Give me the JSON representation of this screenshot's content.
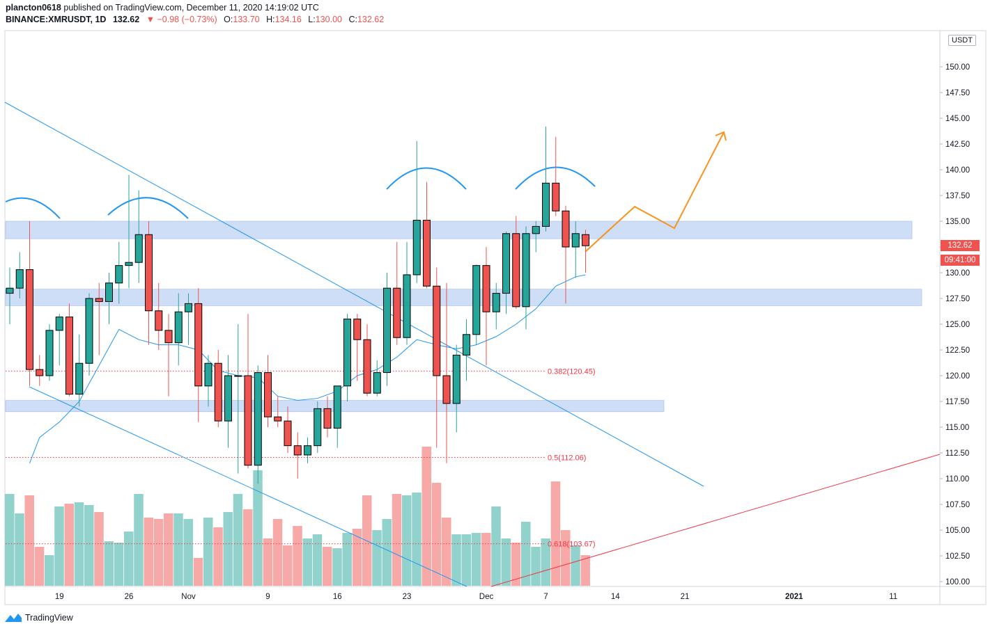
{
  "header": {
    "author": "plancton0618",
    "published_text": "published on TradingView.com, December 11, 2020 14:19:02 UTC",
    "symbol": "BINANCE:XMRUSDT, 1D",
    "last": "132.62",
    "change": "▼ −0.98 (−0.73%)",
    "o_label": "O:",
    "o": "133.70",
    "h_label": "H:",
    "h": "134.16",
    "l_label": "L:",
    "l": "130.00",
    "c_label": "C:",
    "c": "132.62"
  },
  "price_axis": {
    "currency": "USDT",
    "last_price_tag": "132.62",
    "countdown_tag": "09:41:00"
  },
  "colors": {
    "up": "#26a69a",
    "down": "#ef5350",
    "vol_up": "#92d2cc",
    "vol_down": "#f7a9a7",
    "zone": "#c6d8f5",
    "trend": "#2196f3",
    "projection": "#f7931e",
    "support": "#f23645"
  },
  "footer": {
    "brand": "TradingView"
  },
  "chart_data": {
    "type": "candlestick",
    "ylim": [
      100,
      151.5
    ],
    "y_ticks": [
      "100.00",
      "102.50",
      "105.00",
      "107.50",
      "110.00",
      "112.50",
      "115.00",
      "117.50",
      "120.00",
      "122.50",
      "125.00",
      "127.50",
      "130.00",
      "132.50",
      "135.00",
      "137.50",
      "140.00",
      "142.50",
      "145.00",
      "147.50",
      "150.00"
    ],
    "x_ticks": [
      {
        "label": "19",
        "bar": 5
      },
      {
        "label": "26",
        "bar": 12
      },
      {
        "label": "Nov",
        "bar": 18
      },
      {
        "label": "9",
        "bar": 26
      },
      {
        "label": "16",
        "bar": 33
      },
      {
        "label": "23",
        "bar": 40
      },
      {
        "label": "Dec",
        "bar": 48
      },
      {
        "label": "7",
        "bar": 54
      },
      {
        "label": "14",
        "bar": 61
      },
      {
        "label": "21",
        "bar": 68
      },
      {
        "label": "2021",
        "bar": 79
      },
      {
        "label": "11",
        "bar": 89
      }
    ],
    "candles": [
      {
        "o": 128.0,
        "h": 130.5,
        "l": 125.0,
        "c": 128.5
      },
      {
        "o": 128.5,
        "h": 132.0,
        "l": 127.5,
        "c": 130.3
      },
      {
        "o": 130.3,
        "h": 135.0,
        "l": 119.0,
        "c": 120.6
      },
      {
        "o": 120.6,
        "h": 122.0,
        "l": 119.0,
        "c": 120.0
      },
      {
        "o": 120.0,
        "h": 125.0,
        "l": 119.5,
        "c": 124.4
      },
      {
        "o": 124.4,
        "h": 126.0,
        "l": 121.0,
        "c": 125.7
      },
      {
        "o": 125.7,
        "h": 127.0,
        "l": 118.0,
        "c": 118.2
      },
      {
        "o": 118.2,
        "h": 124.0,
        "l": 117.0,
        "c": 121.2
      },
      {
        "o": 121.2,
        "h": 128.0,
        "l": 120.0,
        "c": 127.5
      },
      {
        "o": 127.5,
        "h": 129.0,
        "l": 122.0,
        "c": 127.2
      },
      {
        "o": 127.2,
        "h": 130.0,
        "l": 125.0,
        "c": 129.0
      },
      {
        "o": 129.0,
        "h": 133.0,
        "l": 127.0,
        "c": 130.7
      },
      {
        "o": 130.7,
        "h": 139.5,
        "l": 128.5,
        "c": 131.0
      },
      {
        "o": 131.0,
        "h": 138.0,
        "l": 129.0,
        "c": 133.7
      },
      {
        "o": 133.7,
        "h": 135.0,
        "l": 123.0,
        "c": 126.3
      },
      {
        "o": 126.3,
        "h": 129.0,
        "l": 122.5,
        "c": 124.4
      },
      {
        "o": 124.4,
        "h": 126.0,
        "l": 118.0,
        "c": 123.2
      },
      {
        "o": 123.2,
        "h": 128.0,
        "l": 121.0,
        "c": 126.2
      },
      {
        "o": 126.2,
        "h": 128.0,
        "l": 123.0,
        "c": 127.0
      },
      {
        "o": 127.0,
        "h": 128.5,
        "l": 115.5,
        "c": 119.0
      },
      {
        "o": 119.0,
        "h": 122.0,
        "l": 117.0,
        "c": 121.2
      },
      {
        "o": 121.2,
        "h": 122.5,
        "l": 115.0,
        "c": 115.6
      },
      {
        "o": 115.6,
        "h": 122.0,
        "l": 113.0,
        "c": 120.0
      },
      {
        "o": 120.0,
        "h": 125.0,
        "l": 110.5,
        "c": 120.0
      },
      {
        "o": 120.0,
        "h": 126.0,
        "l": 111.0,
        "c": 111.3
      },
      {
        "o": 111.3,
        "h": 121.0,
        "l": 109.5,
        "c": 120.3
      },
      {
        "o": 120.3,
        "h": 122.0,
        "l": 115.0,
        "c": 116.0
      },
      {
        "o": 116.0,
        "h": 118.0,
        "l": 115.0,
        "c": 115.6
      },
      {
        "o": 115.6,
        "h": 117.0,
        "l": 112.5,
        "c": 113.2
      },
      {
        "o": 113.2,
        "h": 114.5,
        "l": 110.0,
        "c": 112.3
      },
      {
        "o": 112.3,
        "h": 114.0,
        "l": 111.5,
        "c": 113.2
      },
      {
        "o": 113.2,
        "h": 117.5,
        "l": 112.5,
        "c": 116.8
      },
      {
        "o": 116.8,
        "h": 118.0,
        "l": 114.0,
        "c": 114.9
      },
      {
        "o": 114.9,
        "h": 119.0,
        "l": 113.0,
        "c": 119.0
      },
      {
        "o": 119.0,
        "h": 126.0,
        "l": 117.5,
        "c": 125.5
      },
      {
        "o": 125.5,
        "h": 126.0,
        "l": 119.5,
        "c": 123.5
      },
      {
        "o": 123.5,
        "h": 125.0,
        "l": 118.0,
        "c": 118.3
      },
      {
        "o": 118.3,
        "h": 121.5,
        "l": 118.0,
        "c": 120.3
      },
      {
        "o": 120.3,
        "h": 130.0,
        "l": 119.0,
        "c": 128.5
      },
      {
        "o": 128.5,
        "h": 133.0,
        "l": 123.0,
        "c": 123.7
      },
      {
        "o": 123.7,
        "h": 133.0,
        "l": 123.0,
        "c": 129.8
      },
      {
        "o": 129.8,
        "h": 142.8,
        "l": 129.0,
        "c": 135.1
      },
      {
        "o": 135.1,
        "h": 138.8,
        "l": 128.5,
        "c": 128.7
      },
      {
        "o": 128.7,
        "h": 130.5,
        "l": 113.0,
        "c": 120.0
      },
      {
        "o": 120.0,
        "h": 129.0,
        "l": 111.5,
        "c": 117.3
      },
      {
        "o": 117.3,
        "h": 123.0,
        "l": 114.5,
        "c": 122.0
      },
      {
        "o": 122.0,
        "h": 125.5,
        "l": 119.5,
        "c": 124.0
      },
      {
        "o": 124.0,
        "h": 130.8,
        "l": 123.0,
        "c": 130.7
      },
      {
        "o": 130.7,
        "h": 132.5,
        "l": 121.0,
        "c": 126.2
      },
      {
        "o": 126.2,
        "h": 129.0,
        "l": 124.5,
        "c": 128.0
      },
      {
        "o": 128.0,
        "h": 134.0,
        "l": 126.0,
        "c": 133.8
      },
      {
        "o": 133.8,
        "h": 135.5,
        "l": 126.5,
        "c": 126.7
      },
      {
        "o": 126.7,
        "h": 134.5,
        "l": 124.5,
        "c": 133.8
      },
      {
        "o": 133.8,
        "h": 135.0,
        "l": 132.0,
        "c": 134.5
      },
      {
        "o": 134.5,
        "h": 144.2,
        "l": 134.0,
        "c": 138.7
      },
      {
        "o": 138.7,
        "h": 143.2,
        "l": 135.5,
        "c": 136.0
      },
      {
        "o": 136.0,
        "h": 136.5,
        "l": 127.0,
        "c": 132.5
      },
      {
        "o": 132.5,
        "h": 135.0,
        "l": 129.5,
        "c": 133.8
      },
      {
        "o": 133.7,
        "h": 134.16,
        "l": 130.0,
        "c": 132.62
      }
    ],
    "volume": [
      0.66,
      0.52,
      0.65,
      0.28,
      0.22,
      0.57,
      0.59,
      0.6,
      0.58,
      0.53,
      0.32,
      0.31,
      0.39,
      0.66,
      0.49,
      0.48,
      0.52,
      0.52,
      0.48,
      0.2,
      0.49,
      0.42,
      0.53,
      0.66,
      0.55,
      0.83,
      0.34,
      0.48,
      0.29,
      0.43,
      0.34,
      0.37,
      0.28,
      0.27,
      0.38,
      0.41,
      0.65,
      0.4,
      0.48,
      0.66,
      0.65,
      0.67,
      1.0,
      0.74,
      0.49,
      0.37,
      0.37,
      0.38,
      0.38,
      0.57,
      0.34,
      0.31,
      0.46,
      0.28,
      0.34,
      0.75,
      0.4,
      0.29,
      0.22
    ],
    "moving_average": [
      [
        2,
        111.5
      ],
      [
        3,
        114.0
      ],
      [
        5,
        115.5
      ],
      [
        7,
        117.5
      ],
      [
        9,
        121.0
      ],
      [
        11,
        124.5
      ],
      [
        13,
        123.5
      ],
      [
        15,
        123.0
      ],
      [
        17,
        123.0
      ],
      [
        19,
        122.5
      ],
      [
        21,
        120.5
      ],
      [
        23,
        120.0
      ],
      [
        25,
        119.8
      ],
      [
        27,
        118.0
      ],
      [
        29,
        117.6
      ],
      [
        31,
        117.8
      ],
      [
        33,
        118.5
      ],
      [
        35,
        120.0
      ],
      [
        37,
        120.6
      ],
      [
        39,
        121.8
      ],
      [
        41,
        123.5
      ],
      [
        43,
        123.0
      ],
      [
        45,
        122.6
      ],
      [
        47,
        123.0
      ],
      [
        49,
        123.8
      ],
      [
        51,
        125.0
      ],
      [
        53,
        126.5
      ],
      [
        55,
        128.7
      ],
      [
        57,
        129.6
      ],
      [
        58,
        129.8
      ]
    ],
    "zones": [
      {
        "top": 135.0,
        "bottom": 133.3,
        "x_end": 1309
      },
      {
        "top": 128.4,
        "bottom": 126.8,
        "x_end": 1323
      },
      {
        "top": 117.6,
        "bottom": 116.5,
        "x_end": 953
      }
    ],
    "fib_levels": [
      {
        "label": "0.382(120.45)",
        "value": 120.45
      },
      {
        "label": "0.5(112.06)",
        "value": 112.06
      },
      {
        "label": "0.618(103.67)",
        "value": 103.67
      }
    ]
  }
}
